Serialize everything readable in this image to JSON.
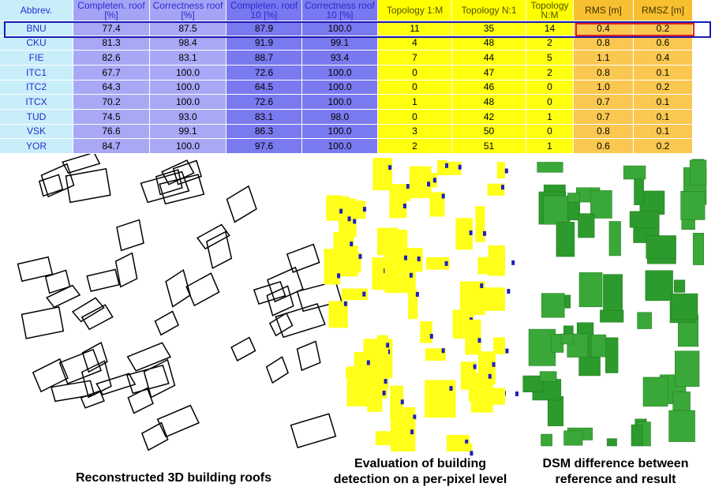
{
  "table": {
    "headers": [
      "Abbrev.",
      "Completen. roof [%]",
      "Correctness roof [%]",
      "Completen. roof 10 [%]",
      "Correctness roof 10 [%]",
      "Topology 1:M",
      "Topology N:1",
      "Topology N:M",
      "RMS [m]",
      "RMSZ [m]"
    ],
    "rows": [
      [
        "BNU",
        "77.4",
        "87.5",
        "87.9",
        "100.0",
        "11",
        "35",
        "14",
        "0.4",
        "0.2"
      ],
      [
        "CKU",
        "81.3",
        "98.4",
        "91.9",
        "99.1",
        "4",
        "48",
        "2",
        "0.8",
        "0.6"
      ],
      [
        "FIE",
        "82.6",
        "83.1",
        "88.7",
        "93.4",
        "7",
        "44",
        "5",
        "1.1",
        "0.4"
      ],
      [
        "ITC1",
        "67.7",
        "100.0",
        "72.6",
        "100.0",
        "0",
        "47",
        "2",
        "0.8",
        "0.1"
      ],
      [
        "ITC2",
        "64.3",
        "100.0",
        "64.5",
        "100.0",
        "0",
        "46",
        "0",
        "1.0",
        "0.2"
      ],
      [
        "ITCX",
        "70.2",
        "100.0",
        "72.6",
        "100.0",
        "1",
        "48",
        "0",
        "0.7",
        "0.1"
      ],
      [
        "TUD",
        "74.5",
        "93.0",
        "83.1",
        "98.0",
        "0",
        "42",
        "1",
        "0.7",
        "0.1"
      ],
      [
        "VSK",
        "76.6",
        "99.1",
        "86.3",
        "100.0",
        "3",
        "50",
        "0",
        "0.8",
        "0.1"
      ],
      [
        "YOR",
        "84.7",
        "100.0",
        "97.6",
        "100.0",
        "2",
        "51",
        "1",
        "0.6",
        "0.2"
      ]
    ]
  },
  "captions": {
    "left": [
      "Reconstructed 3D building roofs"
    ],
    "middle": [
      "Evaluation of building",
      "detection on a per-pixel level"
    ],
    "right": [
      "DSM difference between",
      "reference and result"
    ]
  }
}
